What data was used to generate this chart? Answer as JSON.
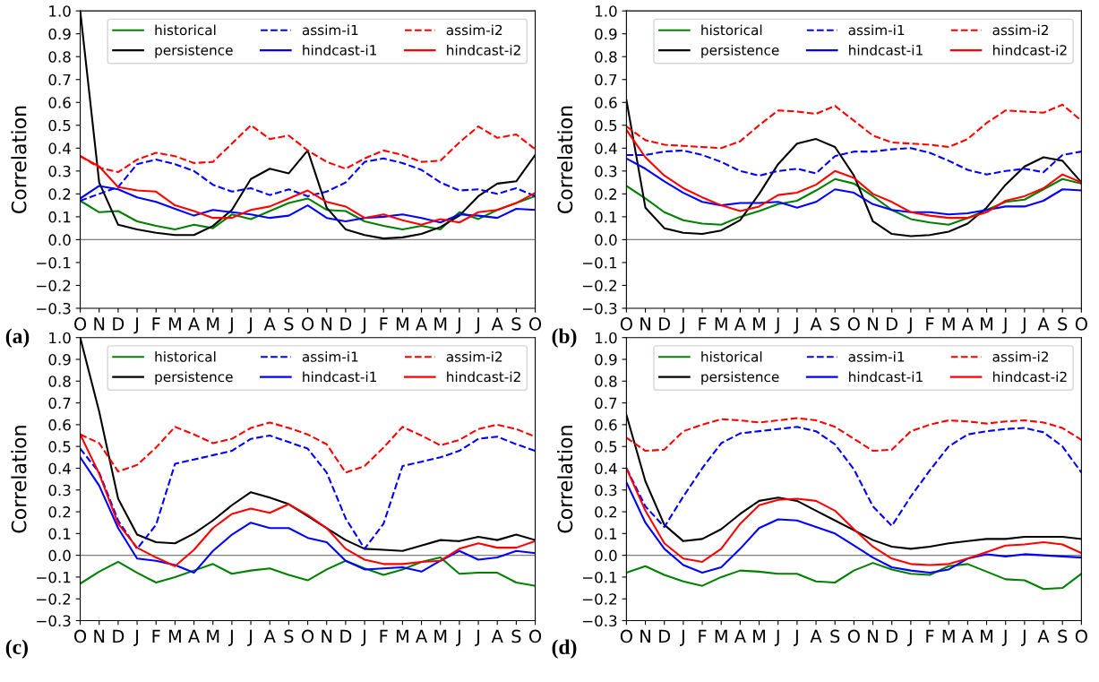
{
  "chart_data": [
    {
      "type": "line",
      "ylabel": "Correlation",
      "annotations": [
        "(a)"
      ],
      "categories": [
        "O",
        "N",
        "D",
        "J",
        "F",
        "M",
        "A",
        "M",
        "J",
        "J",
        "A",
        "S",
        "O",
        "N",
        "D",
        "J",
        "F",
        "M",
        "A",
        "M",
        "J",
        "J",
        "A",
        "S",
        "O"
      ],
      "ylim": [
        -0.3,
        1.0
      ],
      "yticks": [
        {
          "value": -0.3,
          "label": "−0.3"
        },
        {
          "value": -0.2,
          "label": "−0.2"
        },
        {
          "value": -0.1,
          "label": "−0.1"
        },
        {
          "value": 0,
          "label": "0.0"
        },
        0.1,
        0.2,
        0.3,
        0.4,
        0.5,
        0.6,
        0.7,
        0.8,
        0.9,
        {
          "value": 1,
          "label": "1.0"
        }
      ],
      "grid": false,
      "legend": "top right",
      "ref_lines": [
        {
          "axis": "y",
          "value": 0,
          "color": "#808080"
        }
      ],
      "series": [
        {
          "name": "historical",
          "color": "#008000",
          "line_style": "solid",
          "values": [
            0.17,
            0.12,
            0.125,
            0.08,
            0.06,
            0.045,
            0.065,
            0.05,
            0.11,
            0.09,
            0.125,
            0.16,
            0.18,
            0.13,
            0.125,
            0.08,
            0.06,
            0.045,
            0.06,
            0.045,
            0.12,
            0.09,
            0.13,
            0.16,
            0.19
          ]
        },
        {
          "name": "persistence",
          "color": "#000000",
          "line_style": "solid",
          "values": [
            1.0,
            0.25,
            0.065,
            0.045,
            0.03,
            0.02,
            0.02,
            0.06,
            0.13,
            0.265,
            0.31,
            0.29,
            0.39,
            0.14,
            0.045,
            0.02,
            0.005,
            0.01,
            0.025,
            0.055,
            0.105,
            0.19,
            0.245,
            0.255,
            0.37
          ]
        },
        {
          "name": "assim-i1",
          "color": "#0000ff",
          "line_style": "dashed",
          "values": [
            0.17,
            0.2,
            0.23,
            0.33,
            0.35,
            0.33,
            0.3,
            0.24,
            0.21,
            0.225,
            0.195,
            0.22,
            0.19,
            0.21,
            0.25,
            0.34,
            0.355,
            0.335,
            0.305,
            0.25,
            0.215,
            0.22,
            0.2,
            0.225,
            0.19
          ]
        },
        {
          "name": "hindcast-i1",
          "color": "#0000ff",
          "line_style": "solid",
          "values": [
            0.18,
            0.235,
            0.22,
            0.185,
            0.165,
            0.135,
            0.105,
            0.13,
            0.12,
            0.11,
            0.095,
            0.105,
            0.15,
            0.095,
            0.08,
            0.095,
            0.1,
            0.11,
            0.095,
            0.075,
            0.11,
            0.105,
            0.095,
            0.135,
            0.13
          ]
        },
        {
          "name": "assim-i2",
          "color": "#ff0000",
          "line_style": "dashed",
          "values": [
            0.365,
            0.315,
            0.295,
            0.35,
            0.38,
            0.365,
            0.335,
            0.34,
            0.42,
            0.5,
            0.44,
            0.455,
            0.39,
            0.34,
            0.31,
            0.355,
            0.39,
            0.37,
            0.34,
            0.345,
            0.425,
            0.495,
            0.445,
            0.46,
            0.395
          ]
        },
        {
          "name": "hindcast-i2",
          "color": "#ff0000",
          "line_style": "solid",
          "values": [
            0.365,
            0.32,
            0.23,
            0.215,
            0.21,
            0.15,
            0.125,
            0.095,
            0.095,
            0.13,
            0.145,
            0.18,
            0.215,
            0.165,
            0.145,
            0.095,
            0.11,
            0.085,
            0.065,
            0.09,
            0.075,
            0.12,
            0.13,
            0.16,
            0.205
          ]
        }
      ]
    },
    {
      "type": "line",
      "ylabel": "Correlation",
      "annotations": [
        "(b)"
      ],
      "categories": [
        "O",
        "N",
        "D",
        "J",
        "F",
        "M",
        "A",
        "M",
        "J",
        "J",
        "A",
        "S",
        "O",
        "N",
        "D",
        "J",
        "F",
        "M",
        "A",
        "M",
        "J",
        "J",
        "A",
        "S",
        "O"
      ],
      "ylim": [
        -0.3,
        1.0
      ],
      "yticks": [
        {
          "value": -0.3,
          "label": "−0.3"
        },
        {
          "value": -0.2,
          "label": "−0.2"
        },
        {
          "value": -0.1,
          "label": "−0.1"
        },
        {
          "value": 0,
          "label": "0.0"
        },
        0.1,
        0.2,
        0.3,
        0.4,
        0.5,
        0.6,
        0.7,
        0.8,
        0.9,
        {
          "value": 1,
          "label": "1.0"
        }
      ],
      "grid": false,
      "legend": "top right",
      "ref_lines": [
        {
          "axis": "y",
          "value": 0,
          "color": "#808080"
        }
      ],
      "series": [
        {
          "name": "historical",
          "color": "#008000",
          "line_style": "solid",
          "values": [
            0.235,
            0.18,
            0.12,
            0.085,
            0.07,
            0.065,
            0.1,
            0.125,
            0.155,
            0.17,
            0.215,
            0.265,
            0.245,
            0.19,
            0.13,
            0.09,
            0.075,
            0.065,
            0.095,
            0.13,
            0.165,
            0.175,
            0.22,
            0.265,
            0.245
          ]
        },
        {
          "name": "persistence",
          "color": "#000000",
          "line_style": "solid",
          "values": [
            0.61,
            0.14,
            0.05,
            0.03,
            0.025,
            0.04,
            0.085,
            0.2,
            0.33,
            0.42,
            0.44,
            0.405,
            0.28,
            0.08,
            0.025,
            0.015,
            0.02,
            0.035,
            0.07,
            0.14,
            0.24,
            0.32,
            0.36,
            0.345,
            0.25
          ]
        },
        {
          "name": "assim-i1",
          "color": "#0000ff",
          "line_style": "dashed",
          "values": [
            0.37,
            0.37,
            0.385,
            0.39,
            0.37,
            0.34,
            0.3,
            0.28,
            0.3,
            0.31,
            0.29,
            0.365,
            0.385,
            0.385,
            0.395,
            0.4,
            0.38,
            0.345,
            0.305,
            0.285,
            0.3,
            0.31,
            0.295,
            0.37,
            0.385
          ]
        },
        {
          "name": "hindcast-i1",
          "color": "#0000ff",
          "line_style": "solid",
          "values": [
            0.355,
            0.31,
            0.255,
            0.205,
            0.165,
            0.15,
            0.16,
            0.16,
            0.165,
            0.14,
            0.165,
            0.22,
            0.205,
            0.155,
            0.13,
            0.12,
            0.12,
            0.11,
            0.115,
            0.13,
            0.145,
            0.145,
            0.17,
            0.22,
            0.215
          ]
        },
        {
          "name": "assim-i2",
          "color": "#ff0000",
          "line_style": "dashed",
          "values": [
            0.495,
            0.435,
            0.415,
            0.41,
            0.405,
            0.4,
            0.43,
            0.5,
            0.565,
            0.56,
            0.55,
            0.585,
            0.52,
            0.455,
            0.425,
            0.42,
            0.415,
            0.405,
            0.44,
            0.51,
            0.565,
            0.56,
            0.555,
            0.59,
            0.52
          ]
        },
        {
          "name": "hindcast-i2",
          "color": "#ff0000",
          "line_style": "solid",
          "values": [
            0.48,
            0.36,
            0.28,
            0.225,
            0.185,
            0.15,
            0.125,
            0.145,
            0.195,
            0.205,
            0.24,
            0.3,
            0.27,
            0.2,
            0.165,
            0.12,
            0.105,
            0.095,
            0.095,
            0.12,
            0.17,
            0.19,
            0.225,
            0.285,
            0.25
          ]
        }
      ]
    },
    {
      "type": "line",
      "ylabel": "Correlation",
      "annotations": [
        "(c)"
      ],
      "categories": [
        "O",
        "N",
        "D",
        "J",
        "F",
        "M",
        "A",
        "M",
        "J",
        "J",
        "A",
        "S",
        "O",
        "N",
        "D",
        "J",
        "F",
        "M",
        "A",
        "M",
        "J",
        "J",
        "A",
        "S",
        "O"
      ],
      "ylim": [
        -0.3,
        1.0
      ],
      "yticks": [
        {
          "value": -0.3,
          "label": "−0.3"
        },
        {
          "value": -0.2,
          "label": "−0.2"
        },
        {
          "value": -0.1,
          "label": "−0.1"
        },
        {
          "value": 0,
          "label": "0.0"
        },
        0.1,
        0.2,
        0.3,
        0.4,
        0.5,
        0.6,
        0.7,
        0.8,
        0.9,
        {
          "value": 1,
          "label": "1.0"
        }
      ],
      "grid": false,
      "legend": "top right",
      "ref_lines": [
        {
          "axis": "y",
          "value": 0,
          "color": "#808080"
        }
      ],
      "series": [
        {
          "name": "historical",
          "color": "#008000",
          "line_style": "solid",
          "values": [
            -0.13,
            -0.075,
            -0.03,
            -0.08,
            -0.125,
            -0.1,
            -0.07,
            -0.04,
            -0.085,
            -0.07,
            -0.06,
            -0.09,
            -0.115,
            -0.065,
            -0.025,
            -0.06,
            -0.09,
            -0.065,
            -0.03,
            -0.01,
            -0.085,
            -0.08,
            -0.08,
            -0.125,
            -0.14
          ]
        },
        {
          "name": "persistence",
          "color": "#000000",
          "line_style": "solid",
          "values": [
            1.0,
            0.66,
            0.26,
            0.095,
            0.06,
            0.055,
            0.1,
            0.16,
            0.23,
            0.29,
            0.265,
            0.235,
            0.18,
            0.125,
            0.07,
            0.03,
            0.025,
            0.02,
            0.045,
            0.07,
            0.065,
            0.085,
            0.07,
            0.095,
            0.07
          ]
        },
        {
          "name": "assim-i1",
          "color": "#0000ff",
          "line_style": "dashed",
          "values": [
            0.49,
            0.38,
            0.16,
            0.03,
            0.14,
            0.42,
            0.44,
            0.46,
            0.48,
            0.535,
            0.55,
            0.52,
            0.49,
            0.38,
            0.17,
            0.03,
            0.145,
            0.41,
            0.43,
            0.45,
            0.48,
            0.535,
            0.545,
            0.51,
            0.48
          ]
        },
        {
          "name": "hindcast-i1",
          "color": "#0000ff",
          "line_style": "solid",
          "values": [
            0.45,
            0.32,
            0.125,
            -0.015,
            -0.025,
            -0.045,
            -0.08,
            0.02,
            0.095,
            0.15,
            0.125,
            0.125,
            0.08,
            0.06,
            -0.025,
            -0.065,
            -0.06,
            -0.055,
            -0.075,
            -0.025,
            0.02,
            -0.02,
            -0.01,
            0.02,
            0.01
          ]
        },
        {
          "name": "assim-i2",
          "color": "#ff0000",
          "line_style": "dashed",
          "values": [
            0.555,
            0.515,
            0.385,
            0.415,
            0.495,
            0.59,
            0.555,
            0.515,
            0.535,
            0.585,
            0.61,
            0.585,
            0.555,
            0.51,
            0.38,
            0.41,
            0.495,
            0.59,
            0.55,
            0.505,
            0.53,
            0.58,
            0.6,
            0.58,
            0.545
          ]
        },
        {
          "name": "hindcast-i2",
          "color": "#ff0000",
          "line_style": "solid",
          "values": [
            0.555,
            0.375,
            0.145,
            0.035,
            -0.01,
            -0.05,
            0.025,
            0.125,
            0.19,
            0.215,
            0.195,
            0.235,
            0.185,
            0.125,
            0.03,
            -0.02,
            -0.04,
            -0.04,
            -0.03,
            -0.025,
            0.03,
            0.055,
            0.035,
            0.035,
            0.065
          ]
        }
      ]
    },
    {
      "type": "line",
      "ylabel": "Correlation",
      "annotations": [
        "(d)"
      ],
      "categories": [
        "O",
        "N",
        "D",
        "J",
        "F",
        "M",
        "A",
        "M",
        "J",
        "J",
        "A",
        "S",
        "O",
        "N",
        "D",
        "J",
        "F",
        "M",
        "A",
        "M",
        "J",
        "J",
        "A",
        "S",
        "O"
      ],
      "ylim": [
        -0.3,
        1.0
      ],
      "yticks": [
        {
          "value": -0.3,
          "label": "−0.3"
        },
        {
          "value": -0.2,
          "label": "−0.2"
        },
        {
          "value": -0.1,
          "label": "−0.1"
        },
        {
          "value": 0,
          "label": "0.0"
        },
        0.1,
        0.2,
        0.3,
        0.4,
        0.5,
        0.6,
        0.7,
        0.8,
        0.9,
        {
          "value": 1,
          "label": "1.0"
        }
      ],
      "grid": false,
      "legend": "top right",
      "ref_lines": [
        {
          "axis": "y",
          "value": 0,
          "color": "#808080"
        }
      ],
      "series": [
        {
          "name": "historical",
          "color": "#008000",
          "line_style": "solid",
          "values": [
            -0.08,
            -0.05,
            -0.09,
            -0.12,
            -0.14,
            -0.1,
            -0.07,
            -0.075,
            -0.085,
            -0.085,
            -0.12,
            -0.125,
            -0.07,
            -0.035,
            -0.065,
            -0.085,
            -0.09,
            -0.05,
            -0.04,
            -0.075,
            -0.11,
            -0.115,
            -0.155,
            -0.15,
            -0.085
          ]
        },
        {
          "name": "persistence",
          "color": "#000000",
          "line_style": "solid",
          "values": [
            0.645,
            0.34,
            0.14,
            0.065,
            0.075,
            0.12,
            0.19,
            0.25,
            0.265,
            0.25,
            0.205,
            0.16,
            0.115,
            0.07,
            0.04,
            0.03,
            0.04,
            0.055,
            0.065,
            0.075,
            0.075,
            0.085,
            0.085,
            0.085,
            0.075
          ]
        },
        {
          "name": "assim-i1",
          "color": "#0000ff",
          "line_style": "dashed",
          "values": [
            0.4,
            0.225,
            0.13,
            0.27,
            0.4,
            0.515,
            0.56,
            0.57,
            0.58,
            0.59,
            0.57,
            0.51,
            0.395,
            0.225,
            0.135,
            0.27,
            0.39,
            0.5,
            0.555,
            0.57,
            0.58,
            0.585,
            0.565,
            0.5,
            0.38
          ]
        },
        {
          "name": "hindcast-i1",
          "color": "#0000ff",
          "line_style": "solid",
          "values": [
            0.335,
            0.15,
            0.03,
            -0.045,
            -0.08,
            -0.055,
            0.03,
            0.125,
            0.165,
            0.16,
            0.13,
            0.1,
            0.045,
            -0.01,
            -0.055,
            -0.07,
            -0.08,
            -0.065,
            -0.015,
            0.005,
            -0.005,
            0.005,
            0.0,
            -0.005,
            -0.01
          ]
        },
        {
          "name": "assim-i2",
          "color": "#ff0000",
          "line_style": "dashed",
          "values": [
            0.54,
            0.48,
            0.485,
            0.57,
            0.6,
            0.625,
            0.62,
            0.61,
            0.62,
            0.63,
            0.62,
            0.59,
            0.535,
            0.48,
            0.485,
            0.57,
            0.6,
            0.62,
            0.615,
            0.605,
            0.615,
            0.62,
            0.61,
            0.585,
            0.53
          ]
        },
        {
          "name": "hindcast-i2",
          "color": "#ff0000",
          "line_style": "solid",
          "values": [
            0.4,
            0.205,
            0.055,
            -0.015,
            -0.03,
            0.03,
            0.145,
            0.23,
            0.255,
            0.26,
            0.25,
            0.205,
            0.12,
            0.04,
            -0.015,
            -0.04,
            -0.045,
            -0.04,
            -0.015,
            0.015,
            0.045,
            0.05,
            0.06,
            0.05,
            0.01
          ]
        }
      ]
    }
  ]
}
